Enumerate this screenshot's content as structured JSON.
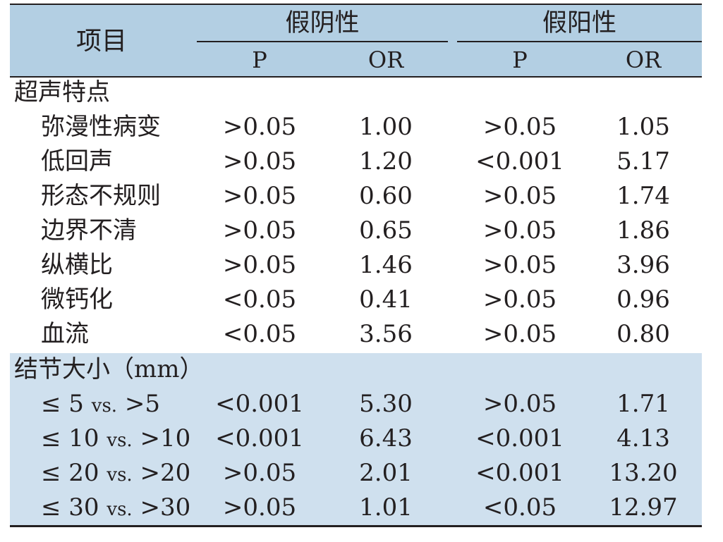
{
  "header": {
    "item_label": "项目",
    "group_false_negative": "假阴性",
    "group_false_positive": "假阳性",
    "sub_p": "P",
    "sub_or": "OR"
  },
  "section_ultrasound": {
    "title": "超声特点",
    "rows": [
      {
        "label": "弥漫性病变",
        "fn_p": ">0.05",
        "fn_or": "1.00",
        "fp_p": ">0.05",
        "fp_or": "1.05"
      },
      {
        "label": "低回声",
        "fn_p": ">0.05",
        "fn_or": "1.20",
        "fp_p": "<0.001",
        "fp_or": "5.17"
      },
      {
        "label": "形态不规则",
        "fn_p": ">0.05",
        "fn_or": "0.60",
        "fp_p": ">0.05",
        "fp_or": "1.74"
      },
      {
        "label": "边界不清",
        "fn_p": ">0.05",
        "fn_or": "0.65",
        "fp_p": ">0.05",
        "fp_or": "1.86"
      },
      {
        "label": "纵横比",
        "fn_p": ">0.05",
        "fn_or": "1.46",
        "fp_p": ">0.05",
        "fp_or": "3.96"
      },
      {
        "label": "微钙化",
        "fn_p": "<0.05",
        "fn_or": "0.41",
        "fp_p": ">0.05",
        "fp_or": "0.96"
      },
      {
        "label": "血流",
        "fn_p": "<0.05",
        "fn_or": "3.56",
        "fp_p": ">0.05",
        "fp_or": "0.80"
      }
    ]
  },
  "section_nodule": {
    "title": "结节大小（mm）",
    "rows": [
      {
        "lead": "≤ 5",
        "vs": "vs.",
        "tail": ">5",
        "fn_p": "<0.001",
        "fn_or": "5.30",
        "fp_p": ">0.05",
        "fp_or": "1.71"
      },
      {
        "lead": "≤ 10",
        "vs": "vs.",
        "tail": ">10",
        "fn_p": "<0.001",
        "fn_or": "6.43",
        "fp_p": "<0.001",
        "fp_or": "4.13"
      },
      {
        "lead": "≤ 20",
        "vs": "vs.",
        "tail": ">20",
        "fn_p": ">0.05",
        "fn_or": "2.01",
        "fp_p": "<0.001",
        "fp_or": "13.20"
      },
      {
        "lead": "≤ 30",
        "vs": "vs.",
        "tail": ">30",
        "fn_p": ">0.05",
        "fn_or": "1.01",
        "fp_p": "<0.05",
        "fp_or": "12.97"
      }
    ]
  }
}
